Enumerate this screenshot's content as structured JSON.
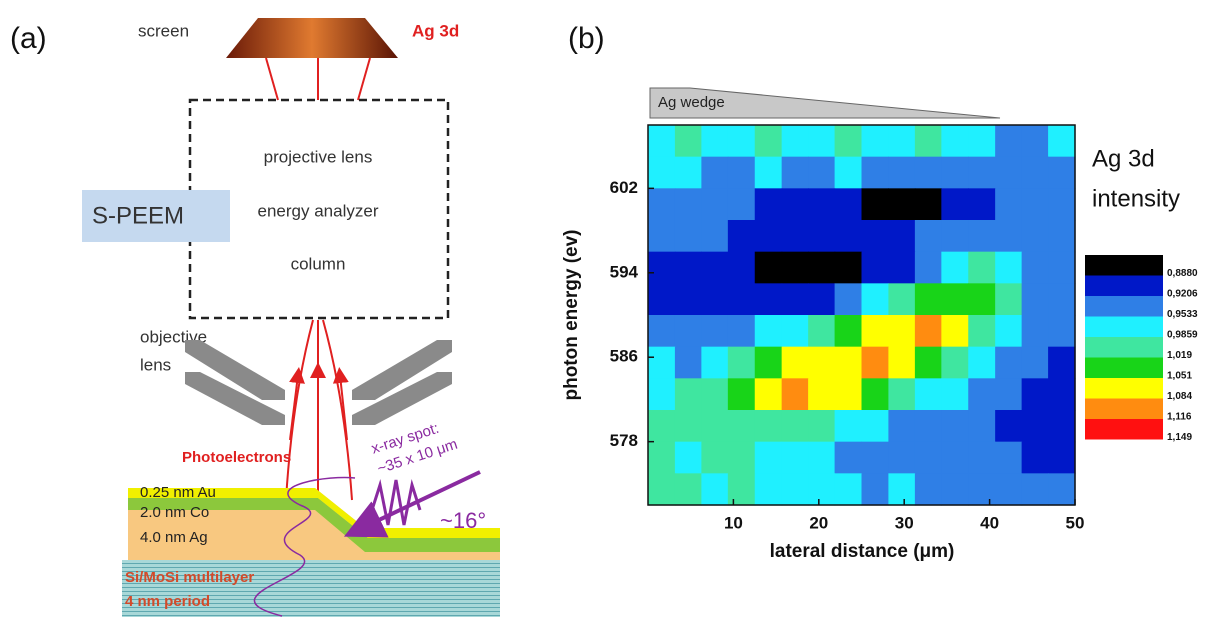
{
  "panel_a": {
    "label": "(a)",
    "screen": "screen",
    "screen_signal": "Ag 3d",
    "column_texts": [
      "projective lens",
      "energy analyzer",
      "column"
    ],
    "speem": "S-PEEM",
    "objective": [
      "objective",
      "lens"
    ],
    "photoelectrons": "Photoelectrons",
    "xray": [
      "x-ray spot:",
      "~35 x 10 μm"
    ],
    "angle": "~16°",
    "layers": [
      "0.25 nm Au",
      "2.0  nm Co",
      "4.0  nm Ag"
    ],
    "substrate": [
      "Si/MoSi multilayer",
      "4 nm period"
    ]
  },
  "panel_b": {
    "label": "(b)",
    "wedge": "Ag wedge"
  },
  "chart_data": {
    "type": "contour",
    "title": [
      "Ag 3d",
      "intensity"
    ],
    "xlabel": "lateral distance (μm)",
    "ylabel": "photon energy (ev)",
    "xlim": [
      0,
      50
    ],
    "ylim": [
      572,
      608
    ],
    "xticks": [
      10,
      20,
      30,
      40,
      50
    ],
    "yticks": [
      578,
      586,
      594,
      602
    ],
    "x": [
      1.6,
      4.7,
      7.8,
      10.9,
      14.1,
      17.2,
      20.3,
      23.4,
      26.6,
      29.7,
      32.8,
      35.9,
      39.1,
      42.2,
      45.3,
      48.4
    ],
    "y": [
      606.5,
      603.5,
      600.5,
      597.5,
      594.5,
      591.5,
      588.5,
      585.5,
      582.5,
      579.5,
      576.5,
      573.5
    ],
    "z": [
      [
        1.0,
        1.03,
        0.99,
        1.0,
        1.02,
        0.99,
        1.0,
        1.03,
        1.0,
        0.99,
        1.02,
        1.0,
        0.99,
        0.97,
        0.98,
        0.99
      ],
      [
        0.99,
        1.0,
        0.97,
        0.98,
        0.99,
        0.97,
        0.98,
        0.99,
        0.97,
        0.96,
        0.97,
        0.98,
        0.97,
        0.96,
        0.97,
        0.98
      ],
      [
        0.98,
        0.97,
        0.96,
        0.96,
        0.95,
        0.94,
        0.94,
        0.93,
        0.92,
        0.91,
        0.91,
        0.93,
        0.94,
        0.96,
        0.97,
        0.97
      ],
      [
        0.97,
        0.96,
        0.96,
        0.95,
        0.95,
        0.94,
        0.94,
        0.94,
        0.95,
        0.95,
        0.96,
        0.96,
        0.97,
        0.97,
        0.96,
        0.97
      ],
      [
        0.95,
        0.94,
        0.93,
        0.93,
        0.92,
        0.91,
        0.91,
        0.92,
        0.93,
        0.95,
        0.97,
        0.99,
        1.02,
        1.0,
        0.97,
        0.96
      ],
      [
        0.95,
        0.94,
        0.94,
        0.94,
        0.93,
        0.93,
        0.94,
        0.96,
        0.99,
        1.03,
        1.06,
        1.08,
        1.06,
        1.02,
        0.97,
        0.96
      ],
      [
        0.97,
        0.96,
        0.97,
        0.98,
        0.99,
        1.0,
        1.03,
        1.06,
        1.09,
        1.11,
        1.12,
        1.09,
        1.04,
        1.0,
        0.97,
        0.96
      ],
      [
        0.99,
        0.98,
        1.0,
        1.02,
        1.06,
        1.09,
        1.1,
        1.11,
        1.12,
        1.1,
        1.07,
        1.03,
        1.0,
        0.98,
        0.96,
        0.95
      ],
      [
        1.01,
        1.03,
        1.04,
        1.06,
        1.09,
        1.12,
        1.11,
        1.09,
        1.07,
        1.04,
        1.01,
        0.99,
        0.98,
        0.96,
        0.94,
        0.95
      ],
      [
        1.02,
        1.03,
        1.03,
        1.04,
        1.05,
        1.04,
        1.03,
        1.01,
        0.99,
        0.98,
        0.97,
        0.96,
        0.96,
        0.95,
        0.93,
        0.94
      ],
      [
        1.02,
        1.01,
        1.03,
        1.02,
        1.01,
        1.0,
        0.99,
        0.98,
        0.98,
        0.97,
        0.97,
        0.96,
        0.96,
        0.96,
        0.94,
        0.95
      ],
      [
        1.03,
        1.02,
        1.01,
        1.02,
        1.01,
        1.0,
        1.0,
        0.99,
        0.98,
        0.99,
        0.98,
        0.97,
        0.98,
        0.97,
        0.96,
        0.97
      ]
    ],
    "levels": [
      {
        "value": 0.888,
        "label": "0,8880"
      },
      {
        "value": 0.9206,
        "label": "0,9206"
      },
      {
        "value": 0.9533,
        "label": "0,9533"
      },
      {
        "value": 0.9859,
        "label": "0,9859"
      },
      {
        "value": 1.019,
        "label": "1,019"
      },
      {
        "value": 1.051,
        "label": "1,051"
      },
      {
        "value": 1.084,
        "label": "1,084"
      },
      {
        "value": 1.116,
        "label": "1,116"
      },
      {
        "value": 1.149,
        "label": "1,149"
      }
    ],
    "colors": [
      "#000000",
      "#0018c8",
      "#2f7fe6",
      "#1ff0ff",
      "#3fe6a0",
      "#18d418",
      "#ffff00",
      "#ff8c10",
      "#ff1010"
    ]
  }
}
